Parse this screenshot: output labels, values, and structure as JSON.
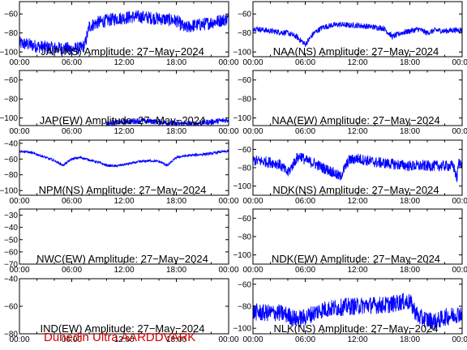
{
  "footer": "Dunedin Ultra AARDDVARK",
  "colors": {
    "trace": "#0000ff",
    "axes": "#000000",
    "footer": "#d40000"
  },
  "x_tick_labels": [
    "00:00",
    "06:00",
    "12:00",
    "18:00",
    "00:00"
  ],
  "chart_data": [
    {
      "type": "line",
      "title": "JAP(NS) Amplitude: 27−May−2024",
      "x": [
        0,
        1,
        2,
        3,
        4,
        5,
        6,
        7,
        7.5,
        8,
        9,
        10,
        11,
        12,
        13,
        14,
        15,
        16,
        17,
        18,
        19,
        20,
        21,
        22,
        23,
        24
      ],
      "y": [
        -91,
        -92,
        -94,
        -95,
        -96,
        -96,
        -97,
        -96,
        -93,
        -73,
        -69,
        -67,
        -65,
        -64,
        -63,
        -63,
        -64,
        -65,
        -66,
        -67,
        -75,
        -72,
        -71,
        -69,
        -67,
        -65
      ],
      "noise": 7,
      "ylim": [
        -105,
        -47
      ],
      "yticks": [
        -60,
        -80,
        -100
      ],
      "xlim": [
        0,
        24
      ]
    },
    {
      "type": "line",
      "title": "NAA(NS) Amplitude: 27−May−2024",
      "x": [
        0,
        2,
        4,
        5,
        6,
        7,
        8,
        9,
        10,
        11,
        12,
        13,
        14,
        15,
        16,
        17,
        18,
        19,
        20,
        21,
        22,
        23,
        24
      ],
      "y": [
        -75,
        -78,
        -80,
        -84,
        -92,
        -80,
        -74,
        -72,
        -71,
        -72,
        -72,
        -73,
        -74,
        -75,
        -84,
        -80,
        -78,
        -76,
        -80,
        -77,
        -78,
        -77,
        -77
      ],
      "noise": 3,
      "ylim": [
        -105,
        -47
      ],
      "yticks": [
        -60,
        -80,
        -100
      ],
      "xlim": [
        0,
        24
      ]
    },
    {
      "type": "line",
      "title": "JAP(EW) Amplitude: 27−May−2024",
      "x": [
        10,
        12,
        14,
        16,
        18,
        20,
        22,
        24
      ],
      "y": [
        -106,
        -104,
        -103,
        -104,
        -106,
        -106,
        -104,
        -102
      ],
      "noise": 3,
      "ylim": [
        -108,
        -50
      ],
      "yticks": [
        -60,
        -80,
        -100
      ],
      "xlim": [
        0,
        24
      ]
    },
    {
      "type": "line",
      "title": "NAA(EW) Amplitude: 27−May−2024",
      "x": [],
      "y": [],
      "noise": 0,
      "ylim": [
        -108,
        -50
      ],
      "yticks": [
        -60,
        -80,
        -100
      ],
      "xlim": [
        0,
        24
      ]
    },
    {
      "type": "line",
      "title": "NPM(NS) Amplitude: 27−May−2024",
      "x": [
        0,
        1,
        2,
        3,
        4,
        5,
        6,
        7,
        8,
        9,
        10,
        11,
        12,
        13,
        14,
        15,
        16,
        17,
        18,
        19,
        20,
        21,
        22,
        23,
        24
      ],
      "y": [
        -50,
        -51,
        -54,
        -58,
        -62,
        -68,
        -60,
        -58,
        -61,
        -64,
        -68,
        -69,
        -67,
        -65,
        -63,
        -62,
        -63,
        -68,
        -58,
        -56,
        -55,
        -54,
        -53,
        -51,
        -50
      ],
      "noise": 1.5,
      "ylim": [
        -106,
        -36
      ],
      "yticks": [
        -40,
        -60,
        -80,
        -100
      ],
      "xlim": [
        0,
        24
      ]
    },
    {
      "type": "line",
      "title": "NDK(NS) Amplitude: 27−May−2024",
      "x": [
        0,
        1,
        2,
        3,
        4,
        5,
        5.5,
        6,
        7,
        8,
        9,
        10,
        11,
        12,
        13,
        14,
        15,
        16,
        17,
        18,
        19,
        20,
        21,
        22,
        23,
        23.4,
        23.6,
        24
      ],
      "y": [
        -72,
        -73,
        -74,
        -76,
        -86,
        -70,
        -67,
        -72,
        -75,
        -80,
        -84,
        -90,
        -72,
        -70,
        -72,
        -74,
        -75,
        -76,
        -77,
        -78,
        -78,
        -78,
        -78,
        -78,
        -78,
        -92,
        -75,
        -74
      ],
      "noise": 6,
      "ylim": [
        -110,
        -50
      ],
      "yticks": [
        -60,
        -80,
        -100
      ],
      "xlim": [
        0,
        24
      ]
    },
    {
      "type": "line",
      "title": "NWC(EW) Amplitude: 27−May−2024",
      "x": [],
      "y": [],
      "noise": 0,
      "ylim": [
        -70,
        -25
      ],
      "yticks": [
        -30,
        -40,
        -50,
        -60,
        -70
      ],
      "xlim": [
        0,
        24
      ]
    },
    {
      "type": "line",
      "title": "NDK(EW) Amplitude: 27−May−2024",
      "x": [],
      "y": [],
      "noise": 0,
      "ylim": [
        -110,
        -50
      ],
      "yticks": [
        -60,
        -80,
        -100
      ],
      "xlim": [
        0,
        24
      ]
    },
    {
      "type": "line",
      "title": "IND(EW) Amplitude: 27−May−2024",
      "x": [],
      "y": [],
      "noise": 0,
      "ylim": [
        -80,
        -40
      ],
      "yticks": [
        -40,
        -60,
        -80
      ],
      "xlim": [
        0,
        24
      ]
    },
    {
      "type": "line",
      "title": "NLK(NS) Amplitude: 27−May−2024",
      "x": [
        0,
        1,
        2,
        3,
        4,
        5,
        6,
        7,
        8,
        9,
        10,
        11,
        12,
        13,
        14,
        15,
        16,
        17,
        18,
        19,
        20,
        21,
        22,
        23,
        24
      ],
      "y": [
        -85,
        -86,
        -86,
        -86,
        -88,
        -92,
        -90,
        -86,
        -83,
        -82,
        -81,
        -80,
        -80,
        -79,
        -79,
        -79,
        -78,
        -76,
        -76,
        -90,
        -92,
        -94,
        -90,
        -88,
        -86
      ],
      "noise": 8,
      "ylim": [
        -105,
        -55
      ],
      "yticks": [
        -60,
        -80,
        -100
      ],
      "xlim": [
        0,
        24
      ]
    }
  ]
}
